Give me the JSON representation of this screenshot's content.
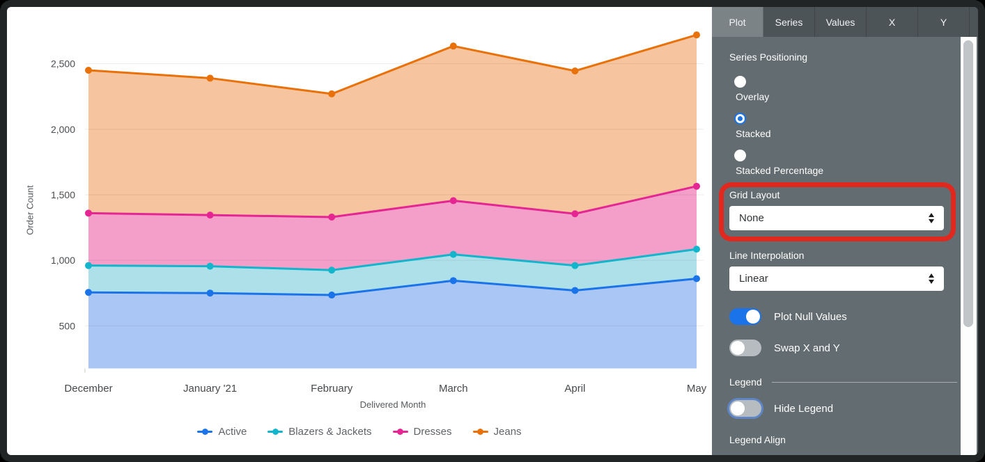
{
  "chart_data": {
    "type": "area",
    "stacking": "stacked",
    "title": "",
    "xlabel": "Delivered Month",
    "ylabel": "Order Count",
    "categories": [
      "December",
      "January '21",
      "February",
      "March",
      "April",
      "May"
    ],
    "series": [
      {
        "name": "Active",
        "color": "#1A73E8",
        "fill": "#A9C6F4",
        "values": [
          755,
          750,
          735,
          845,
          770,
          860
        ]
      },
      {
        "name": "Blazers & Jackets",
        "color": "#12B5CB",
        "fill": "#AEE0EA",
        "values": [
          205,
          205,
          190,
          200,
          190,
          225
        ]
      },
      {
        "name": "Dresses",
        "color": "#E52592",
        "fill": "#F49FCA",
        "values": [
          400,
          390,
          405,
          410,
          395,
          480
        ]
      },
      {
        "name": "Jeans",
        "color": "#E8710A",
        "fill": "#F6C49E",
        "values": [
          1090,
          1045,
          940,
          1180,
          1090,
          1155
        ]
      }
    ],
    "stacked_totals": [
      2450,
      2390,
      2270,
      2635,
      2445,
      2720
    ],
    "y_ticks": [
      {
        "value": 500,
        "label": "500"
      },
      {
        "value": 1000,
        "label": "1,000"
      },
      {
        "value": 1500,
        "label": "1,500"
      },
      {
        "value": 2000,
        "label": "2,000"
      },
      {
        "value": 2500,
        "label": "2,500"
      }
    ],
    "ylim": [
      175,
      2780
    ],
    "grid": "horizontal",
    "legend_position": "bottom"
  },
  "panel": {
    "tabs": [
      {
        "label": "Plot",
        "active": true
      },
      {
        "label": "Series",
        "active": false
      },
      {
        "label": "Values",
        "active": false
      },
      {
        "label": "X",
        "active": false
      },
      {
        "label": "Y",
        "active": false
      }
    ],
    "series_positioning": {
      "label": "Series Positioning",
      "options": [
        {
          "label": "Overlay",
          "selected": false
        },
        {
          "label": "Stacked",
          "selected": true
        },
        {
          "label": "Stacked Percentage",
          "selected": false
        }
      ]
    },
    "grid_layout": {
      "label": "Grid Layout",
      "value": "None",
      "highlighted": true
    },
    "line_interpolation": {
      "label": "Line Interpolation",
      "value": "Linear"
    },
    "toggles": [
      {
        "label": "Plot Null Values",
        "on": true
      },
      {
        "label": "Swap X and Y",
        "on": false
      }
    ],
    "legend_section": {
      "label": "Legend",
      "hide_legend": {
        "label": "Hide Legend",
        "on": false
      },
      "legend_align_label": "Legend Align"
    }
  },
  "annotation": {
    "type": "highlight-box",
    "target": "grid-layout",
    "color": "#E0281E"
  }
}
